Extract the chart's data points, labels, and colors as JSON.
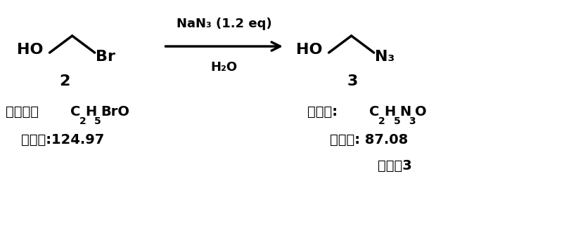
{
  "bg_color": "#ffffff",
  "fig_width": 8.02,
  "fig_height": 3.38,
  "dpi": 100,
  "reactant_label": "2",
  "product_label": "3",
  "reagent_top": "NaN₃ (1.2 eq)",
  "reagent_bottom": "H₂O",
  "left_cjk_formula": "分子式： ",
  "left_mw": "分子量:124.97",
  "right_cjk_formula": "分子式: ",
  "right_mw": "分子量: 87.08",
  "right_intermediate": "中间䝓3"
}
